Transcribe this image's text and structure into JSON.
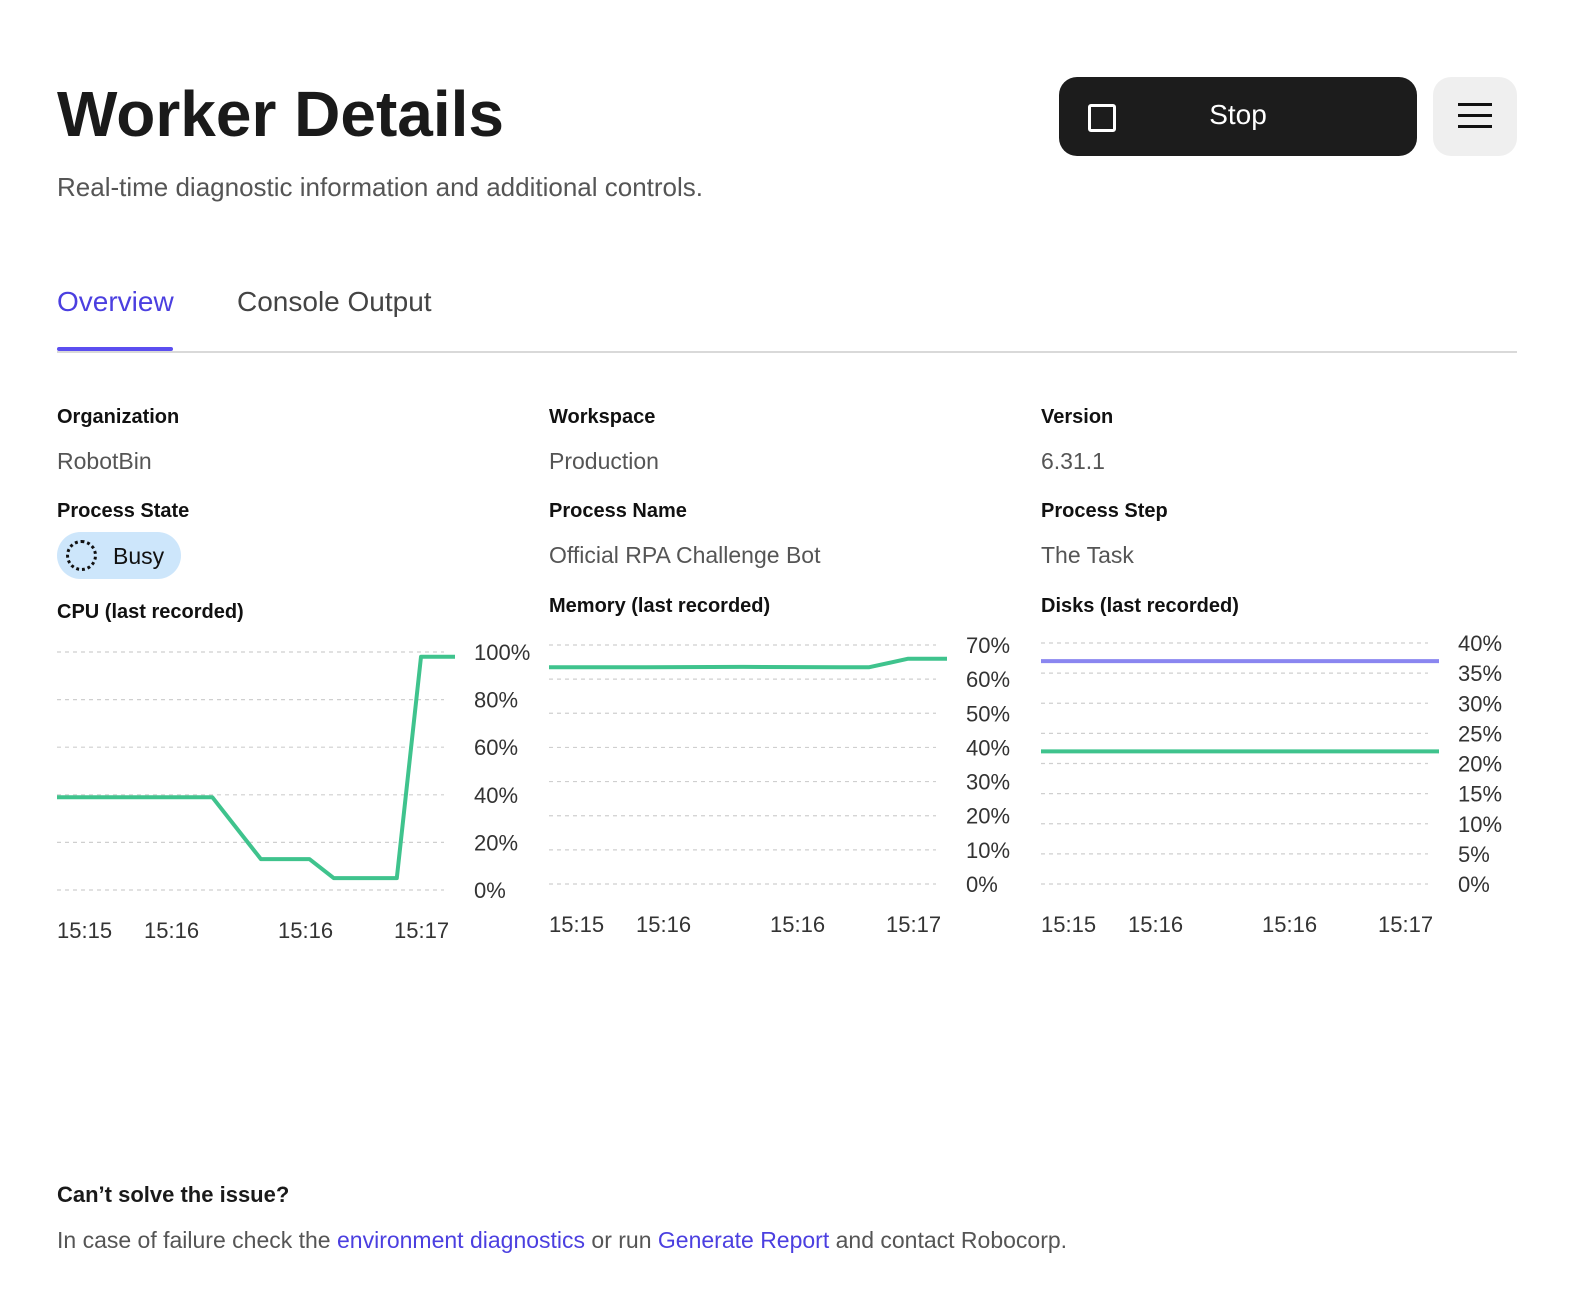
{
  "header": {
    "title": "Worker Details",
    "subtitle": "Real-time diagnostic information and additional controls.",
    "stop_label": "Stop",
    "stop_icon": "stop-square-icon",
    "menu_icon": "hamburger-menu-icon"
  },
  "tabs": [
    {
      "label": "Overview",
      "active": true
    },
    {
      "label": "Console Output",
      "active": false
    }
  ],
  "info": {
    "organization": {
      "label": "Organization",
      "value": "RobotBin"
    },
    "workspace": {
      "label": "Workspace",
      "value": "Production"
    },
    "version": {
      "label": "Version",
      "value": "6.31.1"
    },
    "process_state": {
      "label": "Process State",
      "value": "Busy",
      "badge_color": "#cde6fb"
    },
    "process_name": {
      "label": "Process Name",
      "value": "Official RPA Challenge Bot"
    },
    "process_step": {
      "label": "Process Step",
      "value": "The Task"
    }
  },
  "colors": {
    "accent": "#5b4ef0",
    "series_green": "#3fc38d",
    "series_purple": "#8a86f0"
  },
  "chart_data": [
    {
      "type": "line",
      "title": "CPU (last recorded)",
      "x_labels": [
        "15:15",
        "15:16",
        "15:16",
        "15:17"
      ],
      "x": [
        0,
        1,
        1.6,
        2.1,
        2.6,
        2.85,
        3.5,
        3.75,
        4.1
      ],
      "ylim": [
        0,
        100
      ],
      "y_ticks": [
        "0%",
        "20%",
        "40%",
        "60%",
        "80%",
        "100%"
      ],
      "series": [
        {
          "color": "#3fc38d",
          "values": [
            39,
            39,
            39,
            13,
            13,
            5,
            5,
            98,
            98
          ]
        }
      ]
    },
    {
      "type": "line",
      "title": "Memory (last recorded)",
      "x_labels": [
        "15:15",
        "15:16",
        "15:16",
        "15:17"
      ],
      "x": [
        0,
        1,
        2,
        3,
        3.3,
        3.7,
        4.1
      ],
      "ylim": [
        0,
        70
      ],
      "y_ticks": [
        "0%",
        "10%",
        "20%",
        "30%",
        "40%",
        "50%",
        "60%",
        "70%"
      ],
      "series": [
        {
          "color": "#3fc38d",
          "values": [
            63.5,
            63.5,
            63.6,
            63.5,
            63.5,
            66,
            66
          ]
        }
      ]
    },
    {
      "type": "line",
      "title": "Disks (last recorded)",
      "x_labels": [
        "15:15",
        "15:16",
        "15:16",
        "15:17"
      ],
      "x": [
        0,
        4.1
      ],
      "ylim": [
        0,
        40
      ],
      "y_ticks": [
        "0%",
        "5%",
        "10%",
        "15%",
        "20%",
        "25%",
        "30%",
        "35%",
        "40%"
      ],
      "series": [
        {
          "color": "#8a86f0",
          "values": [
            37,
            37
          ]
        },
        {
          "color": "#3fc38d",
          "values": [
            22,
            22
          ]
        }
      ]
    }
  ],
  "help": {
    "title": "Can’t solve the issue?",
    "text_1": "In case of failure check the ",
    "link_1": "environment diagnostics",
    "text_2": " or run ",
    "link_2": "Generate Report",
    "text_3": " and contact Robocorp."
  }
}
